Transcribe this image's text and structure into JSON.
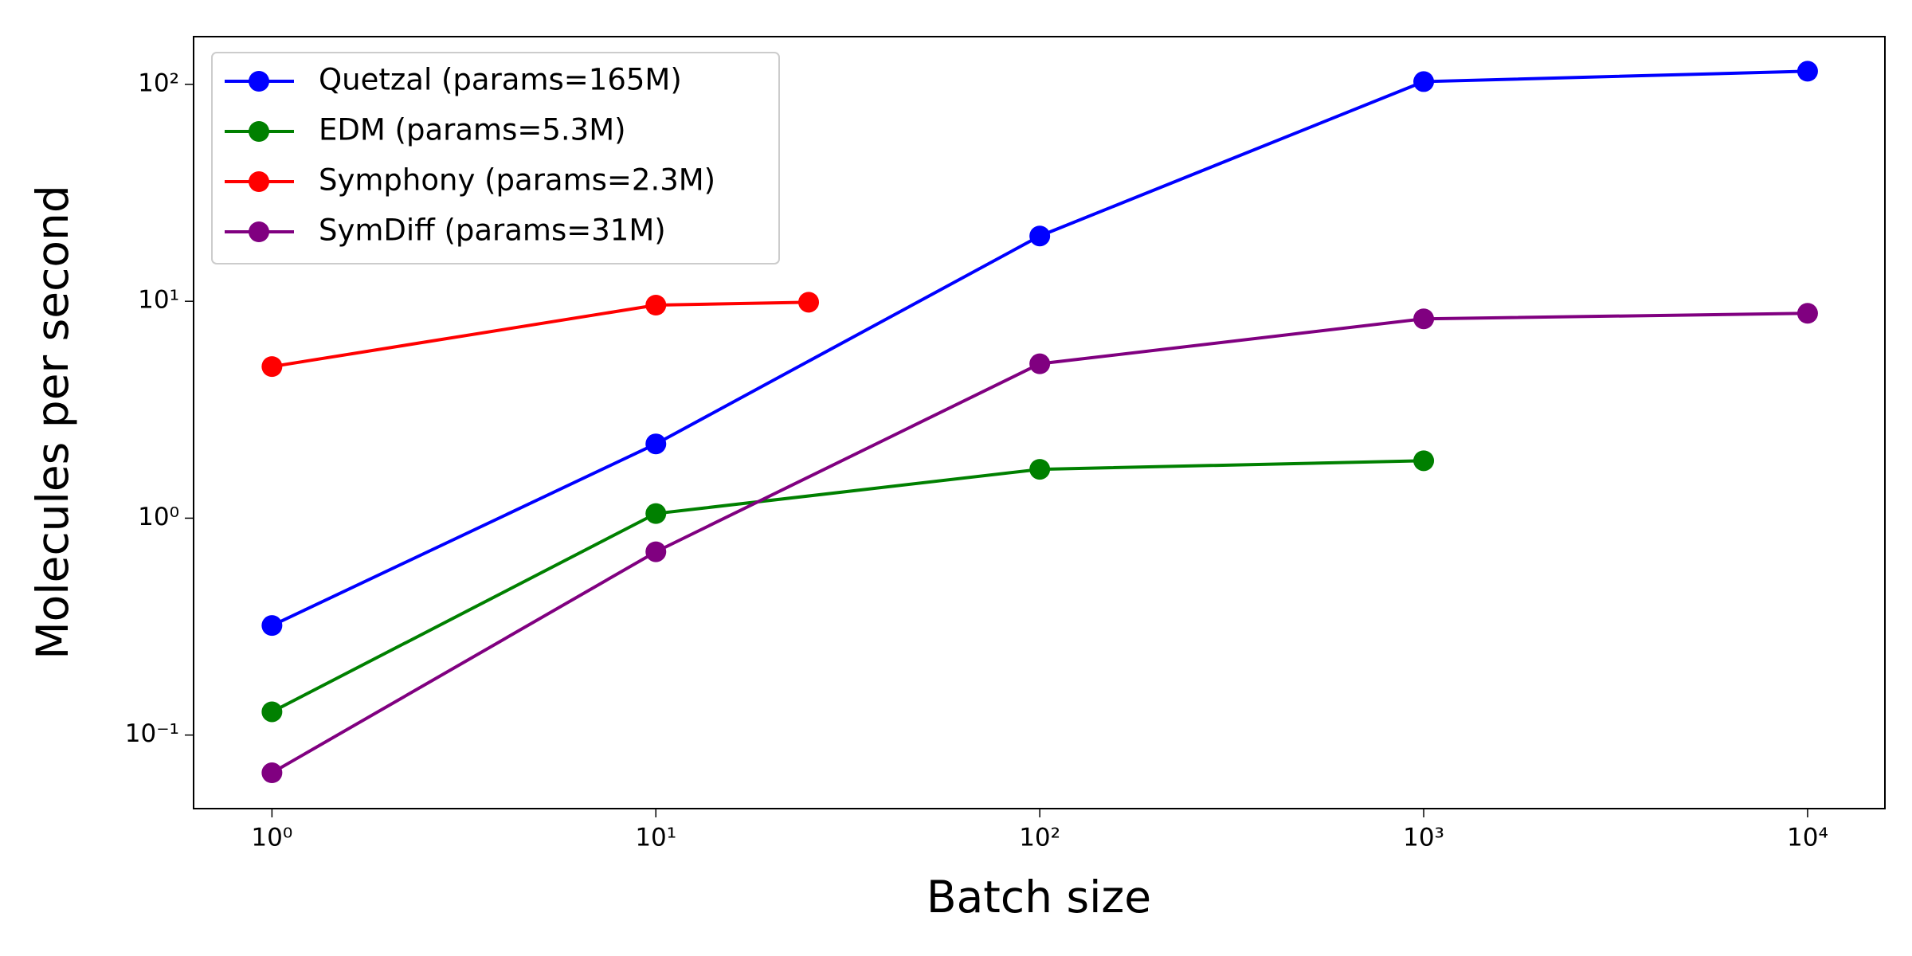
{
  "chart_data": {
    "type": "line",
    "xlabel": "Batch size",
    "ylabel": "Molecules per second",
    "xscale": "log",
    "yscale": "log",
    "xlim": [
      0.625,
      15900
    ],
    "ylim": [
      0.0458,
      166
    ],
    "xticks": [
      {
        "value": 1,
        "label": "10⁰"
      },
      {
        "value": 10,
        "label": "10¹"
      },
      {
        "value": 100,
        "label": "10²"
      },
      {
        "value": 1000,
        "label": "10³"
      },
      {
        "value": 10000,
        "label": "10⁴"
      }
    ],
    "yticks": [
      {
        "value": 0.1,
        "label": "10⁻¹"
      },
      {
        "value": 1,
        "label": "10⁰"
      },
      {
        "value": 10,
        "label": "10¹"
      },
      {
        "value": 100,
        "label": "10²"
      }
    ],
    "legend": "upper left",
    "series": [
      {
        "name": "Quetzal (params=165M)",
        "color": "#0000ff",
        "x": [
          1,
          10,
          100,
          1000,
          10000
        ],
        "values": [
          0.32,
          2.2,
          20,
          103,
          115
        ]
      },
      {
        "name": "EDM (params=5.3M)",
        "color": "#008000",
        "x": [
          1,
          10,
          100,
          1000
        ],
        "values": [
          0.128,
          1.05,
          1.68,
          1.84
        ]
      },
      {
        "name": "Symphony (params=2.3M)",
        "color": "#ff0000",
        "x": [
          1,
          10,
          25
        ],
        "values": [
          5.0,
          9.6,
          9.9
        ]
      },
      {
        "name": "SymDiff (params=31M)",
        "color": "#800080",
        "x": [
          1,
          10,
          100,
          1000,
          10000
        ],
        "values": [
          0.067,
          0.7,
          5.15,
          8.3,
          8.8
        ]
      }
    ]
  }
}
